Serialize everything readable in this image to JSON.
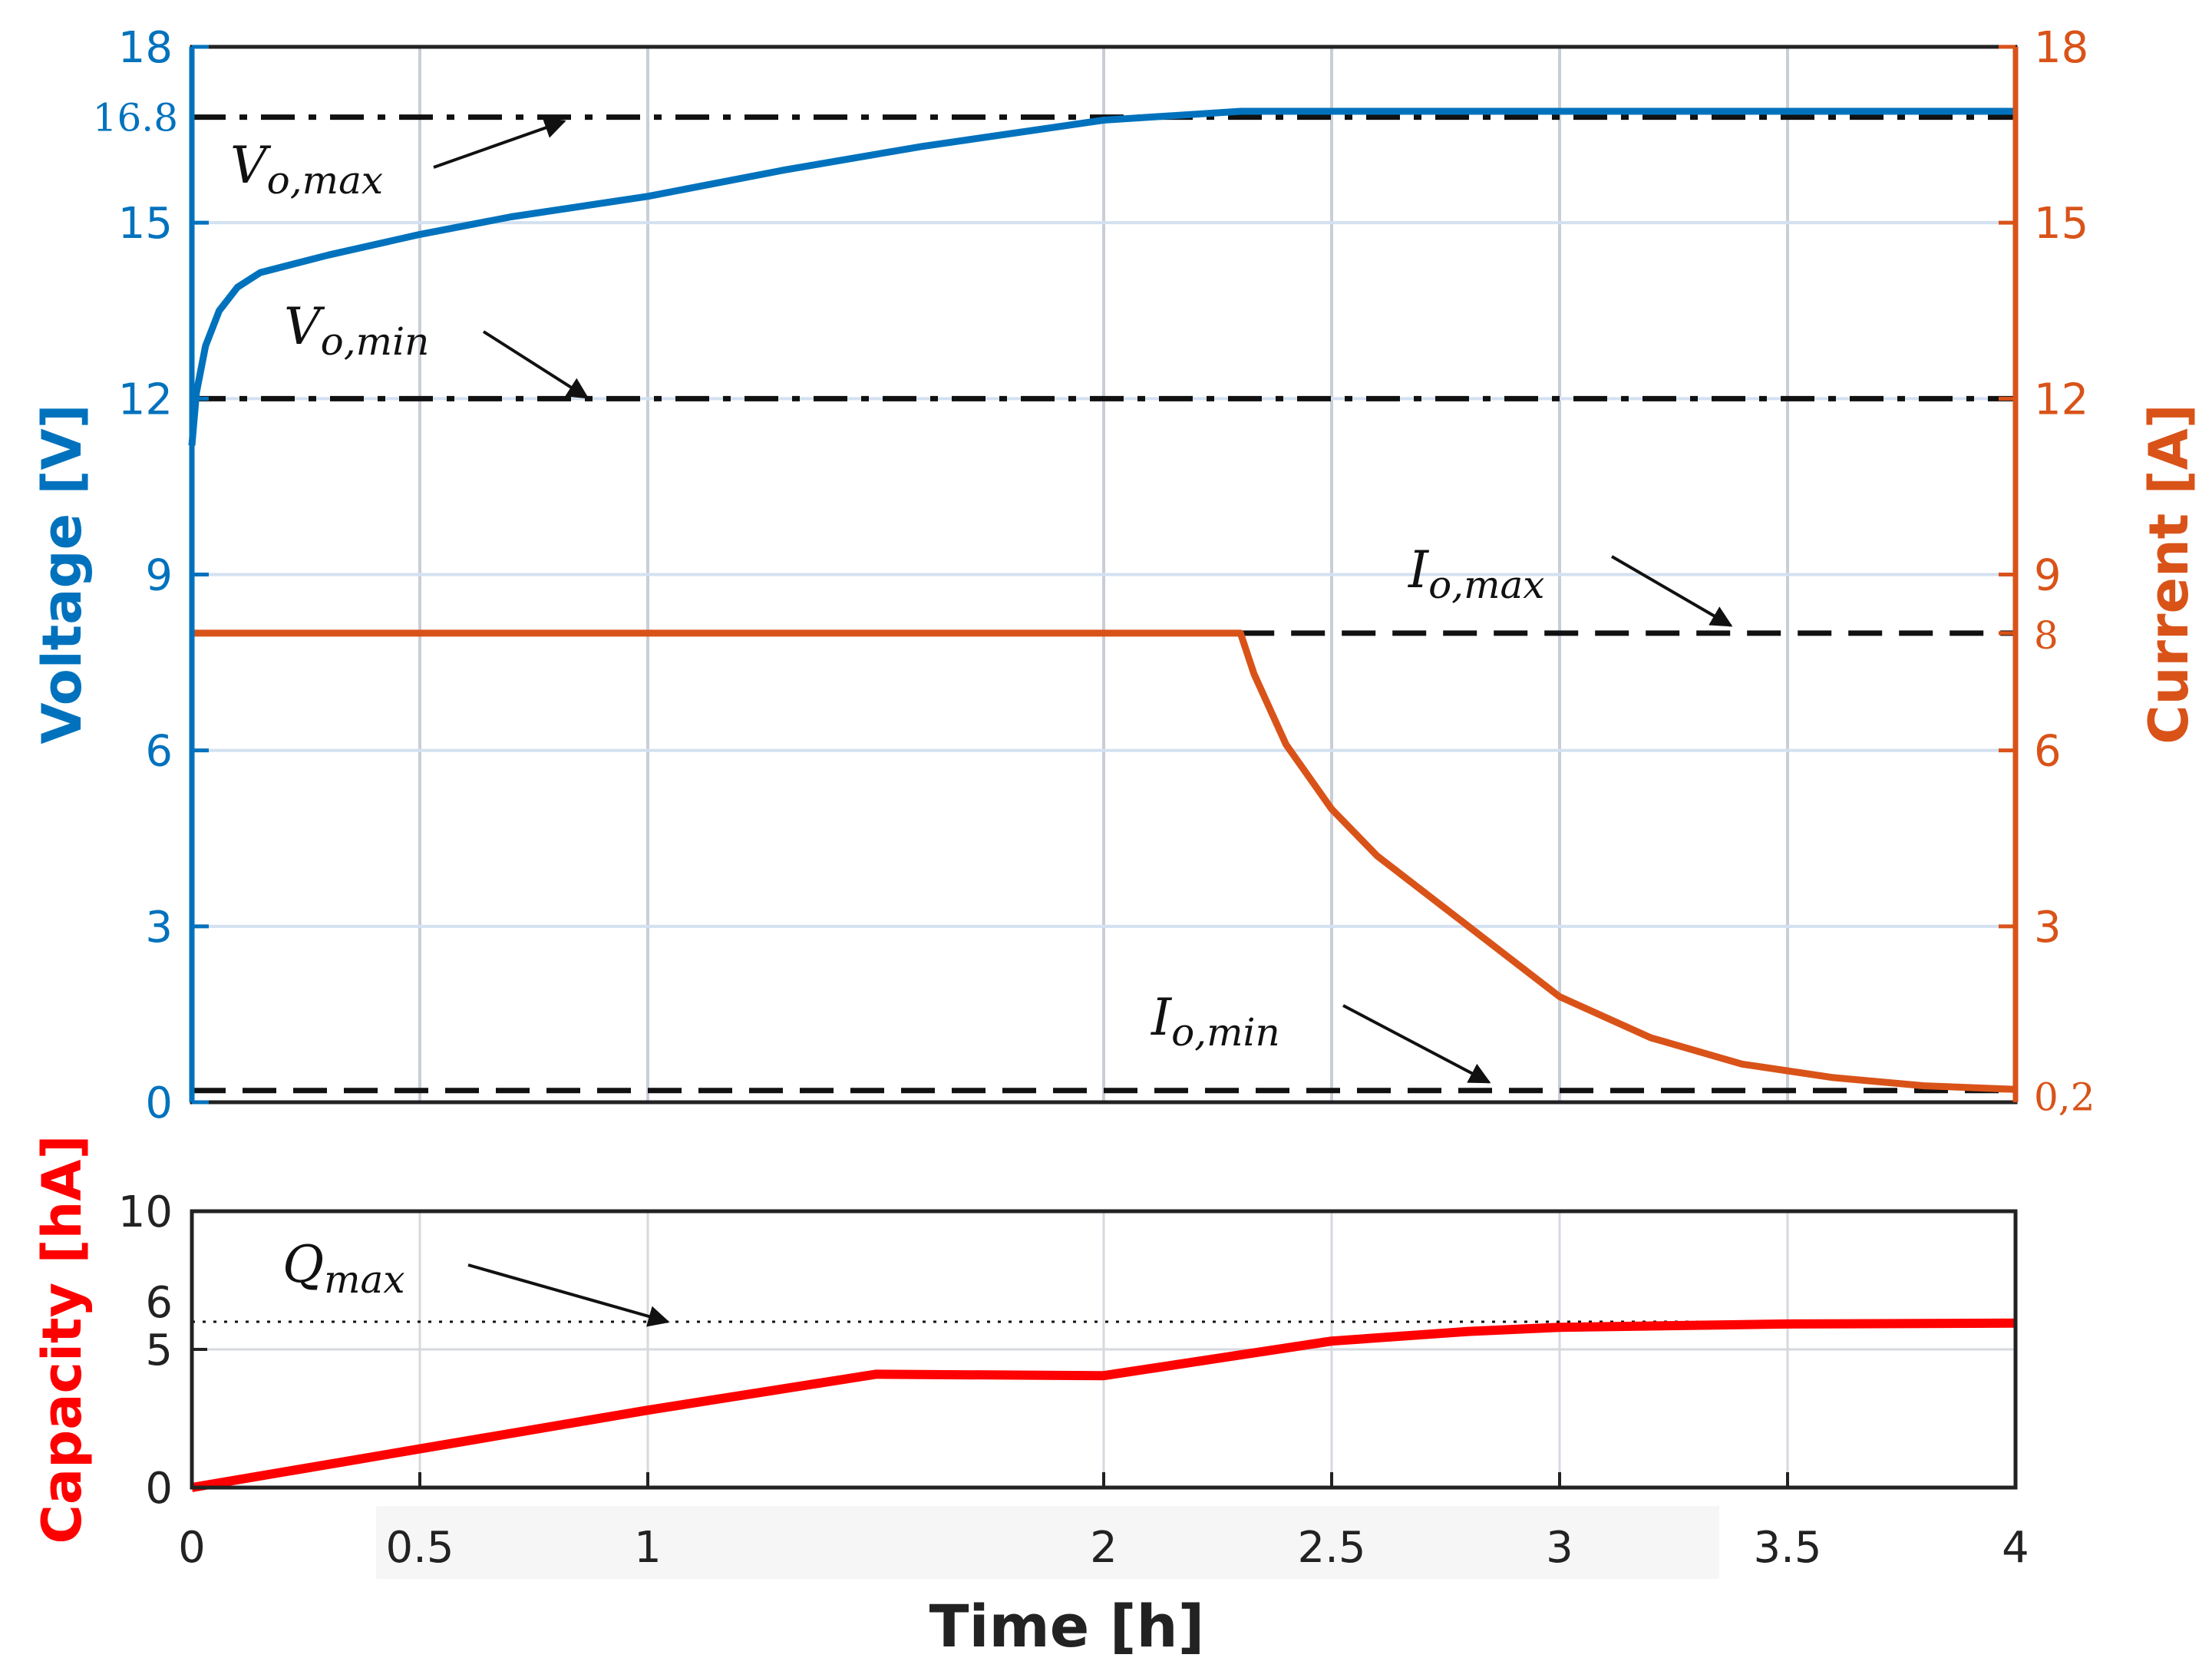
{
  "chart_data": [
    {
      "type": "line",
      "title": "",
      "xlabel": "",
      "ylabel": "Voltage [V]",
      "y2label": "Current [A]",
      "xlim": [
        0,
        4
      ],
      "ylim": [
        0,
        18
      ],
      "y2lim": [
        0,
        18
      ],
      "grid": true,
      "x_gridlines": [
        0.5,
        1,
        2,
        2.5,
        3,
        3.5
      ],
      "y_ticks": [
        "0",
        "3",
        "6",
        "9",
        "12",
        "15",
        "18"
      ],
      "y_extra_tick": "16.8",
      "y2_ticks": [
        "0,2",
        "3",
        "6",
        "8",
        "9",
        "12",
        "15",
        "18"
      ],
      "series": [
        {
          "name": "Voltage",
          "axis": "left",
          "color": "#0072BD",
          "x": [
            0,
            0.01,
            0.03,
            0.06,
            0.1,
            0.15,
            0.3,
            0.5,
            0.7,
            1.0,
            1.3,
            1.6,
            2.0,
            2.3,
            2.5,
            3.0,
            3.5,
            4.0
          ],
          "y": [
            11.2,
            12.1,
            12.9,
            13.5,
            13.9,
            14.15,
            14.45,
            14.8,
            15.1,
            15.45,
            15.9,
            16.3,
            16.75,
            16.9,
            16.9,
            16.9,
            16.9,
            16.9
          ]
        },
        {
          "name": "Current",
          "axis": "right",
          "color": "#D95319",
          "x": [
            0,
            2.3,
            2.33,
            2.4,
            2.5,
            2.6,
            2.8,
            3.0,
            3.2,
            3.4,
            3.6,
            3.8,
            4.0
          ],
          "y": [
            8.0,
            8.0,
            7.3,
            6.1,
            5.0,
            4.2,
            3.0,
            1.8,
            1.1,
            0.65,
            0.42,
            0.28,
            0.22
          ]
        }
      ],
      "reference_lines": [
        {
          "name": "Vo,max",
          "axis": "left",
          "value": 16.8,
          "x_start": 0,
          "style": "dash-dot"
        },
        {
          "name": "Vo,min",
          "axis": "left",
          "value": 12,
          "x_start": 0,
          "style": "dash-dot"
        },
        {
          "name": "Io,max",
          "axis": "right",
          "value": 8,
          "x_start": 2.3,
          "style": "dashed"
        },
        {
          "name": "Io,min",
          "axis": "right",
          "value": 0.2,
          "x_start": 0,
          "style": "dashed"
        }
      ],
      "annotations": [
        {
          "main": "V",
          "sub": "o,max"
        },
        {
          "main": "V",
          "sub": "o,min"
        },
        {
          "main": "I",
          "sub": "o,max"
        },
        {
          "main": "I",
          "sub": "o,min"
        }
      ]
    },
    {
      "type": "line",
      "title": "",
      "xlabel": "Time [h]",
      "ylabel": "Capacity [hA]",
      "xlim": [
        0,
        4
      ],
      "ylim": [
        0,
        10
      ],
      "grid": true,
      "x_ticks": [
        "0",
        "0.5",
        "1",
        "2",
        "2.5",
        "3",
        "3.5",
        "4"
      ],
      "y_ticks": [
        "0",
        "5",
        "10"
      ],
      "y_extra_tick": "6",
      "series": [
        {
          "name": "Capacity",
          "color": "#FF0000",
          "x": [
            0,
            0.5,
            1.0,
            1.5,
            2.0,
            2.3,
            2.5,
            2.8,
            3.0,
            3.5,
            4.0
          ],
          "y": [
            0,
            1.4,
            2.8,
            4.1,
            4.05,
            4.8,
            5.3,
            5.65,
            5.8,
            5.92,
            5.95
          ]
        }
      ],
      "reference_lines": [
        {
          "name": "Qmax",
          "value": 6,
          "style": "dotted"
        }
      ],
      "annotations": [
        {
          "main": "Q",
          "sub": "max"
        }
      ]
    }
  ]
}
